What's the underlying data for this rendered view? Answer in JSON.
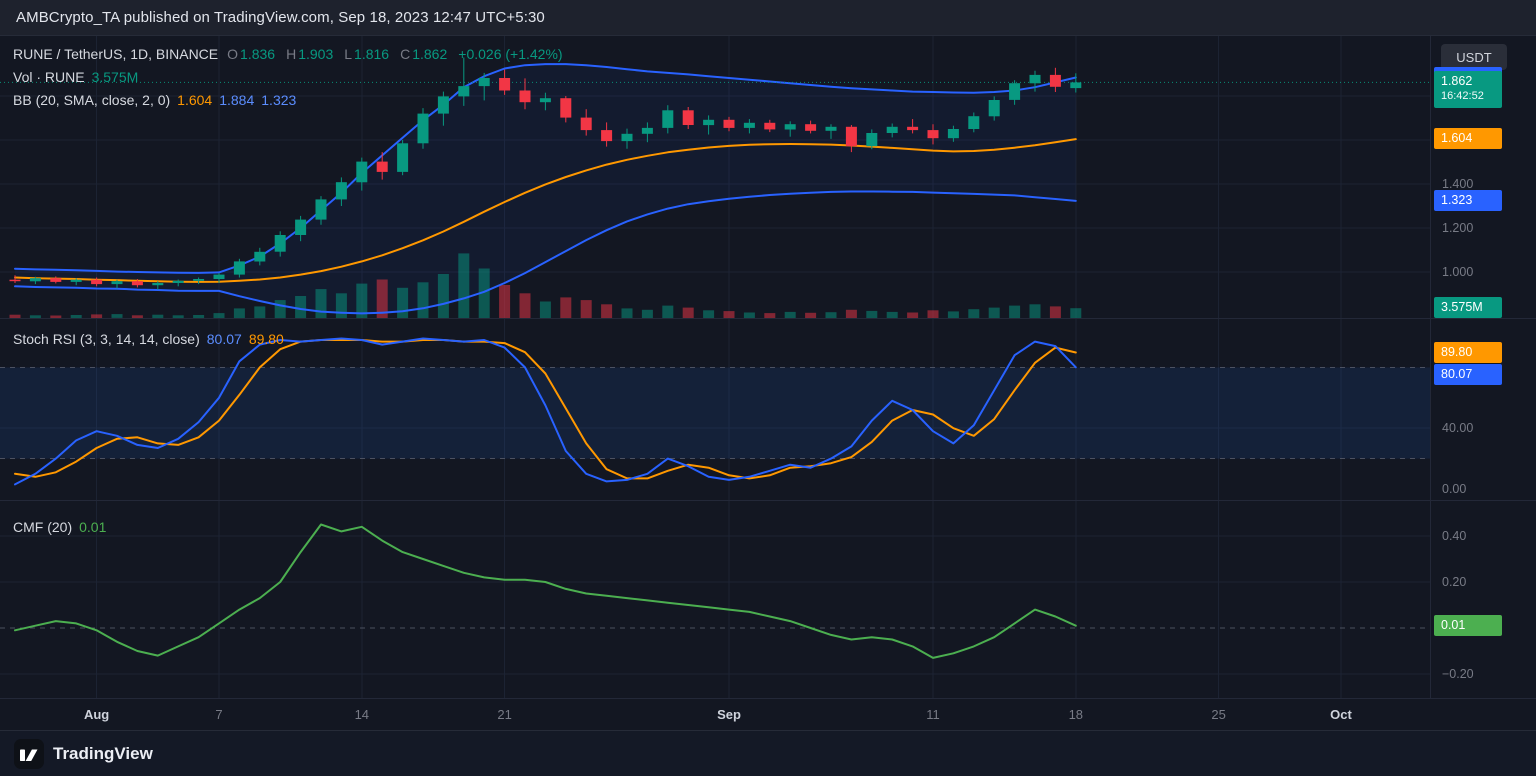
{
  "banner": {
    "text": "AMBCrypto_TA published on TradingView.com, Sep 18, 2023 12:47 UTC+5:30"
  },
  "legend": {
    "symbol": {
      "title": "RUNE / TetherUS, 1D, BINANCE",
      "o_label": "O",
      "o": "1.836",
      "h_label": "H",
      "h": "1.903",
      "l_label": "L",
      "l": "1.816",
      "c_label": "C",
      "c": "1.862",
      "change": "+0.026 (+1.42%)"
    },
    "volume": {
      "label": "Vol · RUNE",
      "value": "3.575M"
    },
    "bb": {
      "label": "BB (20, SMA, close, 2, 0)",
      "basis": "1.604",
      "upper": "1.884",
      "lower": "1.323"
    },
    "stoch": {
      "label": "Stoch RSI (3, 3, 14, 14, close)",
      "k": "80.07",
      "d": "89.80"
    },
    "cmf": {
      "label": "CMF (20)",
      "value": "0.01"
    }
  },
  "price_axis": {
    "currency": "USDT",
    "ticks": [
      {
        "label": "1.400",
        "value": 1.4
      },
      {
        "label": "1.200",
        "value": 1.2
      },
      {
        "label": "1.000",
        "value": 1.0
      }
    ],
    "badges": {
      "upper_band": {
        "label": "1.884",
        "value": 1.884,
        "color": "#2962ff"
      },
      "last_price": {
        "label": "1.862",
        "value": 1.862,
        "countdown": "16:42:52",
        "color": "#089981"
      },
      "basis": {
        "label": "1.604",
        "value": 1.604,
        "color": "#ff9800"
      },
      "lower_band": {
        "label": "1.323",
        "value": 1.323,
        "color": "#2962ff"
      },
      "volume": {
        "label": "3.575M",
        "color": "#089981"
      }
    }
  },
  "stoch_axis": {
    "ticks": [
      {
        "label": "40.00",
        "value": 40
      },
      {
        "label": "0.00",
        "value": 0
      }
    ],
    "badges": {
      "d": {
        "label": "89.80",
        "value": 89.8,
        "color": "#ff9800"
      },
      "k": {
        "label": "80.07",
        "value": 80.07,
        "color": "#2962ff"
      }
    }
  },
  "cmf_axis": {
    "ticks": [
      {
        "label": "0.40",
        "value": 0.4
      },
      {
        "label": "0.20",
        "value": 0.2
      },
      {
        "label": "−0.20",
        "value": -0.2
      }
    ],
    "badges": {
      "value": {
        "label": "0.01",
        "value": 0.01,
        "color": "#4caf50"
      }
    }
  },
  "time_axis": {
    "labels": [
      {
        "label": "Aug",
        "index": 4,
        "major": true
      },
      {
        "label": "7",
        "index": 10
      },
      {
        "label": "14",
        "index": 17
      },
      {
        "label": "21",
        "index": 24
      },
      {
        "label": "Sep",
        "index": 35,
        "major": true
      },
      {
        "label": "11",
        "index": 45
      },
      {
        "label": "18",
        "index": 52
      },
      {
        "label": "25",
        "index": 59
      },
      {
        "label": "Oct",
        "index": 65,
        "major": true
      }
    ]
  },
  "footer": {
    "brand": "TradingView"
  },
  "colors": {
    "up": "#089981",
    "down": "#f23645",
    "bb": "#2962ff",
    "basis": "#ff9800",
    "k": "#2962ff",
    "d": "#ff9800",
    "cmf": "#4caf50",
    "band_fill": "rgba(33,89,180,0.16)",
    "bb_fill": "rgba(41,98,255,0.06)",
    "grid": "#1c2333",
    "dash": "#5a5f6e"
  },
  "chart_data": {
    "type": "candlestick",
    "title": "RUNE / TetherUS, 1D, BINANCE",
    "price_ylim": [
      0.79,
      2.07
    ],
    "price_gridlines": [
      1.0,
      1.2,
      1.4,
      1.6,
      1.8
    ],
    "stoch_bands": [
      80,
      20
    ],
    "volume_unit": "M",
    "ohlcv": [
      [
        0.965,
        0.985,
        0.95,
        0.958,
        1.2
      ],
      [
        0.958,
        0.978,
        0.945,
        0.972,
        1.0
      ],
      [
        0.972,
        0.98,
        0.948,
        0.955,
        0.9
      ],
      [
        0.955,
        0.972,
        0.94,
        0.965,
        1.1
      ],
      [
        0.965,
        0.975,
        0.935,
        0.945,
        1.3
      ],
      [
        0.945,
        0.965,
        0.925,
        0.958,
        1.4
      ],
      [
        0.958,
        0.968,
        0.93,
        0.94,
        1.0
      ],
      [
        0.94,
        0.958,
        0.92,
        0.95,
        1.2
      ],
      [
        0.95,
        0.966,
        0.935,
        0.96,
        1.0
      ],
      [
        0.96,
        0.975,
        0.945,
        0.968,
        1.1
      ],
      [
        0.968,
        0.995,
        0.95,
        0.988,
        1.8
      ],
      [
        0.988,
        1.06,
        0.975,
        1.048,
        3.5
      ],
      [
        1.048,
        1.11,
        1.03,
        1.092,
        4.2
      ],
      [
        1.092,
        1.185,
        1.07,
        1.168,
        6.5
      ],
      [
        1.168,
        1.255,
        1.14,
        1.238,
        8.0
      ],
      [
        1.238,
        1.345,
        1.215,
        1.33,
        10.5
      ],
      [
        1.33,
        1.43,
        1.3,
        1.408,
        9.0
      ],
      [
        1.408,
        1.52,
        1.37,
        1.502,
        12.5
      ],
      [
        1.502,
        1.545,
        1.42,
        1.455,
        14.0
      ],
      [
        1.455,
        1.6,
        1.44,
        1.585,
        11.0
      ],
      [
        1.585,
        1.745,
        1.56,
        1.72,
        13.0
      ],
      [
        1.72,
        1.82,
        1.665,
        1.798,
        16.0
      ],
      [
        1.798,
        1.975,
        1.755,
        1.845,
        23.5
      ],
      [
        1.845,
        1.905,
        1.78,
        1.882,
        18.0
      ],
      [
        1.882,
        1.92,
        1.805,
        1.825,
        12.0
      ],
      [
        1.825,
        1.88,
        1.74,
        1.772,
        9.0
      ],
      [
        1.772,
        1.815,
        1.735,
        1.79,
        6.0
      ],
      [
        1.79,
        1.8,
        1.68,
        1.702,
        7.5
      ],
      [
        1.702,
        1.74,
        1.62,
        1.645,
        6.5
      ],
      [
        1.645,
        1.68,
        1.57,
        1.595,
        5.0
      ],
      [
        1.595,
        1.652,
        1.56,
        1.628,
        3.5
      ],
      [
        1.628,
        1.68,
        1.59,
        1.655,
        3.0
      ],
      [
        1.655,
        1.758,
        1.63,
        1.735,
        4.5
      ],
      [
        1.735,
        1.75,
        1.65,
        1.668,
        3.8
      ],
      [
        1.668,
        1.712,
        1.625,
        1.692,
        2.8
      ],
      [
        1.692,
        1.705,
        1.64,
        1.655,
        2.5
      ],
      [
        1.655,
        1.695,
        1.63,
        1.678,
        2.0
      ],
      [
        1.678,
        1.692,
        1.636,
        1.648,
        1.8
      ],
      [
        1.648,
        1.685,
        1.615,
        1.672,
        2.2
      ],
      [
        1.672,
        1.688,
        1.63,
        1.642,
        1.9
      ],
      [
        1.642,
        1.672,
        1.605,
        1.66,
        2.1
      ],
      [
        1.66,
        1.668,
        1.545,
        1.572,
        3.0
      ],
      [
        1.572,
        1.648,
        1.558,
        1.632,
        2.6
      ],
      [
        1.632,
        1.675,
        1.612,
        1.66,
        2.2
      ],
      [
        1.66,
        1.695,
        1.63,
        1.645,
        2.0
      ],
      [
        1.645,
        1.672,
        1.58,
        1.608,
        2.8
      ],
      [
        1.608,
        1.665,
        1.592,
        1.65,
        2.4
      ],
      [
        1.65,
        1.725,
        1.635,
        1.708,
        3.2
      ],
      [
        1.708,
        1.798,
        1.688,
        1.782,
        3.8
      ],
      [
        1.782,
        1.872,
        1.76,
        1.858,
        4.5
      ],
      [
        1.858,
        1.915,
        1.82,
        1.896,
        5.0
      ],
      [
        1.896,
        1.928,
        1.818,
        1.842,
        4.2
      ],
      [
        1.836,
        1.903,
        1.816,
        1.862,
        3.575
      ]
    ],
    "indicators": {
      "bb_basis": [
        0.975,
        0.972,
        0.97,
        0.968,
        0.965,
        0.963,
        0.96,
        0.958,
        0.956,
        0.955,
        0.956,
        0.96,
        0.966,
        0.975,
        0.988,
        1.004,
        1.024,
        1.048,
        1.076,
        1.108,
        1.144,
        1.184,
        1.228,
        1.274,
        1.318,
        1.36,
        1.398,
        1.432,
        1.462,
        1.488,
        1.51,
        1.528,
        1.544,
        1.556,
        1.566,
        1.573,
        1.578,
        1.581,
        1.582,
        1.581,
        1.579,
        1.575,
        1.57,
        1.564,
        1.558,
        1.552,
        1.548,
        1.55,
        1.556,
        1.565,
        1.576,
        1.59,
        1.604
      ],
      "bb_upper": [
        1.015,
        1.012,
        1.01,
        1.008,
        1.005,
        1.002,
        1.0,
        0.998,
        0.997,
        0.996,
        0.998,
        1.03,
        1.07,
        1.13,
        1.2,
        1.28,
        1.36,
        1.45,
        1.53,
        1.61,
        1.69,
        1.76,
        1.84,
        1.89,
        1.925,
        1.94,
        1.945,
        1.945,
        1.94,
        1.932,
        1.922,
        1.912,
        1.905,
        1.898,
        1.89,
        1.882,
        1.874,
        1.866,
        1.858,
        1.85,
        1.842,
        1.835,
        1.83,
        1.825,
        1.82,
        1.818,
        1.816,
        1.815,
        1.818,
        1.825,
        1.84,
        1.862,
        1.884
      ],
      "bb_lower": [
        0.935,
        0.932,
        0.93,
        0.928,
        0.925,
        0.924,
        0.92,
        0.918,
        0.915,
        0.914,
        0.914,
        0.89,
        0.868,
        0.848,
        0.832,
        0.82,
        0.815,
        0.812,
        0.815,
        0.822,
        0.835,
        0.855,
        0.88,
        0.91,
        0.95,
        0.995,
        1.045,
        1.095,
        1.145,
        1.19,
        1.23,
        1.262,
        1.288,
        1.308,
        1.322,
        1.333,
        1.342,
        1.35,
        1.356,
        1.36,
        1.364,
        1.366,
        1.366,
        1.365,
        1.364,
        1.361,
        1.358,
        1.355,
        1.352,
        1.348,
        1.34,
        1.332,
        1.323
      ],
      "stoch_k": [
        3,
        10,
        20,
        32,
        38,
        35,
        29,
        27,
        33,
        44,
        60,
        84,
        95,
        98,
        97,
        98,
        99,
        98,
        95,
        97,
        99,
        98,
        97,
        98,
        93,
        80,
        55,
        25,
        10,
        5,
        6,
        10,
        20,
        15,
        8,
        6,
        8,
        12,
        16,
        14,
        20,
        28,
        45,
        58,
        52,
        38,
        30,
        42,
        65,
        88,
        97,
        94,
        80.07
      ],
      "stoch_d": [
        10,
        8,
        11,
        18,
        27,
        33,
        34,
        30,
        29,
        34,
        45,
        62,
        80,
        92,
        97,
        98,
        98,
        98,
        97,
        97,
        98,
        98,
        97,
        97,
        96,
        90,
        76,
        53,
        30,
        13,
        7,
        7,
        12,
        16,
        14,
        9,
        7,
        9,
        14,
        15,
        17,
        21,
        31,
        45,
        52,
        49,
        40,
        35,
        46,
        65,
        83,
        93,
        89.8
      ],
      "cmf": [
        -0.01,
        0.01,
        0.03,
        0.02,
        -0.01,
        -0.06,
        -0.1,
        -0.12,
        -0.08,
        -0.04,
        0.02,
        0.08,
        0.13,
        0.2,
        0.33,
        0.45,
        0.42,
        0.44,
        0.38,
        0.33,
        0.3,
        0.27,
        0.24,
        0.22,
        0.21,
        0.21,
        0.2,
        0.17,
        0.15,
        0.14,
        0.13,
        0.12,
        0.11,
        0.1,
        0.09,
        0.08,
        0.07,
        0.05,
        0.03,
        0.0,
        -0.03,
        -0.05,
        -0.04,
        -0.05,
        -0.08,
        -0.13,
        -0.11,
        -0.08,
        -0.04,
        0.02,
        0.08,
        0.05,
        0.01
      ]
    }
  }
}
